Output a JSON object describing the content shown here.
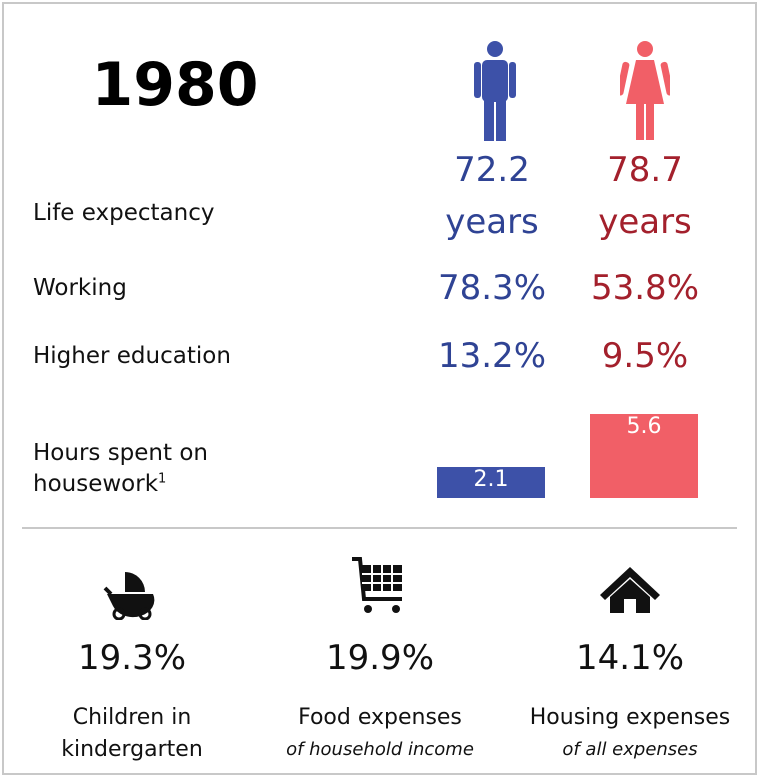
{
  "year": "1980",
  "rows": [
    {
      "label": "Life expectancy",
      "male": "72.2",
      "female": "78.7",
      "unit": "years"
    },
    {
      "label": "Working",
      "male": "78.3%",
      "female": "53.8%"
    },
    {
      "label": "Higher education",
      "male": "13.2%",
      "female": "9.5%"
    }
  ],
  "housework": {
    "label_line1": "Hours spent on",
    "label_line2": "housework",
    "footnote_marker": "1",
    "male": 2.1,
    "female": 5.6
  },
  "stats": [
    {
      "value": "19.3%",
      "label_line1": "Children in",
      "label_line2": "kindergarten"
    },
    {
      "value": "19.9%",
      "label_line1": "Food expenses",
      "note": "of household income"
    },
    {
      "value": "14.1%",
      "label_line1": "Housing expenses",
      "note": "of all expenses"
    }
  ]
}
